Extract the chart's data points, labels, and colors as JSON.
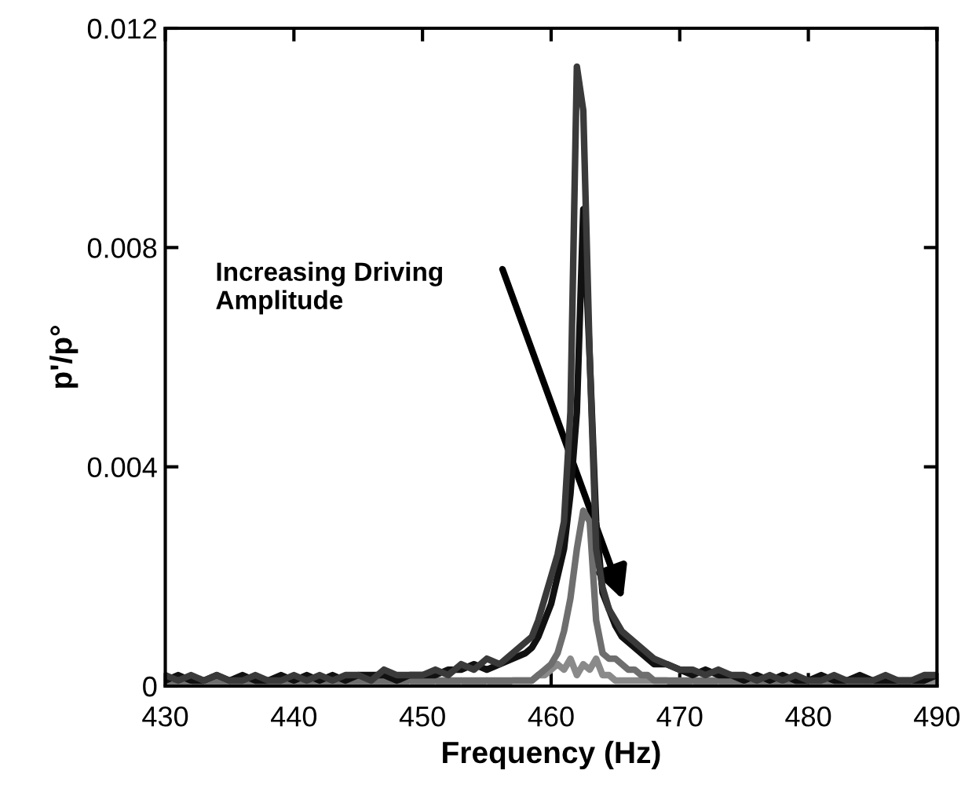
{
  "chart_data": {
    "type": "line",
    "xlabel": "Frequency (Hz)",
    "ylabel": "p'/p°",
    "x": [
      430,
      431,
      432,
      433,
      434,
      435,
      436,
      437,
      438,
      439,
      440,
      441,
      442,
      443,
      444,
      445,
      446,
      447,
      448,
      449,
      450,
      451,
      452,
      453,
      454,
      455,
      456,
      457,
      458,
      458.5,
      459,
      459.5,
      460,
      460.5,
      461,
      461.5,
      462,
      462.5,
      463,
      463.5,
      464,
      464.5,
      465,
      465.5,
      466,
      466.5,
      467,
      467.5,
      468,
      469,
      470,
      471,
      472,
      473,
      474,
      475,
      476,
      477,
      478,
      479,
      480,
      481,
      482,
      483,
      484,
      485,
      486,
      487,
      488,
      489,
      490
    ],
    "series": [
      {
        "color": "#8a8a8a",
        "values": [
          0.0001,
          0,
          0.0001,
          0,
          0.0001,
          0,
          0,
          0.0001,
          0,
          0.0001,
          0,
          0,
          0.0001,
          0,
          0.0001,
          0,
          0,
          0.0001,
          0,
          0.0001,
          0,
          0.0001,
          0,
          0.0001,
          0,
          0.0001,
          0,
          0.0001,
          0.0001,
          0.0001,
          0.0002,
          0.0002,
          0.0003,
          0.0004,
          0.0003,
          0.0005,
          0.0002,
          0.0004,
          0.0003,
          0.0005,
          0.0002,
          0.0002,
          0.0001,
          0.0001,
          0.0001,
          0.0001,
          0.0001,
          0.0001,
          0.0001,
          0.0001,
          0,
          0.0001,
          0,
          0.0001,
          0,
          0.0001,
          0,
          0,
          0.0001,
          0,
          0.0001,
          0,
          0,
          0.0001,
          0,
          0.0001,
          0,
          0,
          0.0001,
          0,
          0.0001
        ]
      },
      {
        "color": "#6e6e6e",
        "values": [
          0.0001,
          0.0001,
          0.0001,
          0.0001,
          0.0001,
          0.0001,
          0.0001,
          0.0001,
          0.0001,
          0.0001,
          0.0001,
          0.0001,
          0.0001,
          0.0001,
          0.0001,
          0.0001,
          0.0001,
          0.0001,
          0.0001,
          0.0001,
          0.0001,
          0.0001,
          0.0001,
          0.0001,
          0.0001,
          0.0001,
          0.0001,
          0.0001,
          0.0001,
          0.0001,
          0.0002,
          0.0003,
          0.0004,
          0.0006,
          0.001,
          0.0016,
          0.0025,
          0.0032,
          0.003,
          0.0012,
          0.0006,
          0.0005,
          0.0005,
          0.0004,
          0.0003,
          0.0003,
          0.0002,
          0.0002,
          0.0001,
          0.0001,
          0.0001,
          0.0001,
          0.0001,
          0.0001,
          0.0001,
          0.0001,
          0.0001,
          0.0001,
          0.0001,
          0.0001,
          0.0001,
          0.0001,
          0.0001,
          0.0001,
          0.0001,
          0.0001,
          0.0001,
          0.0001,
          0.0001,
          0.0001,
          0.0002
        ]
      },
      {
        "color": "#111111",
        "values": [
          0.0001,
          0.0002,
          0.0001,
          0.0001,
          0.0002,
          0.0001,
          0.0002,
          0.0001,
          0.0001,
          0.0002,
          0.0001,
          0.0002,
          0.0001,
          0.0002,
          0.0001,
          0.0002,
          0.0002,
          0.0002,
          0.0001,
          0.0002,
          0.0002,
          0.0002,
          0.0003,
          0.0003,
          0.0004,
          0.0003,
          0.0004,
          0.0005,
          0.0006,
          0.0007,
          0.0009,
          0.0012,
          0.0015,
          0.002,
          0.0025,
          0.0035,
          0.005,
          0.0087,
          0.006,
          0.003,
          0.0017,
          0.0014,
          0.0011,
          0.0009,
          0.0008,
          0.0007,
          0.0006,
          0.0005,
          0.0004,
          0.0004,
          0.0003,
          0.0002,
          0.0003,
          0.0002,
          0.0002,
          0.0001,
          0.0002,
          0.0001,
          0.0002,
          0.0001,
          0.0001,
          0.0002,
          0.0001,
          0.0001,
          0.0002,
          0.0001,
          0.0001,
          0.0001,
          0.0001,
          0.0001,
          0.0002
        ]
      },
      {
        "color": "#3a3a3a",
        "values": [
          0.0002,
          0.0001,
          0.0002,
          0.0001,
          0.0002,
          0.0001,
          0.0001,
          0.0002,
          0.0001,
          0.0001,
          0.0002,
          0.0001,
          0.0002,
          0.0001,
          0.0002,
          0.0002,
          0.0001,
          0.0003,
          0.0002,
          0.0002,
          0.0002,
          0.0003,
          0.0002,
          0.0004,
          0.0003,
          0.0005,
          0.0004,
          0.0006,
          0.0008,
          0.0009,
          0.0012,
          0.0016,
          0.002,
          0.0024,
          0.003,
          0.005,
          0.0113,
          0.0105,
          0.006,
          0.0025,
          0.0018,
          0.0014,
          0.0012,
          0.001,
          0.0009,
          0.0008,
          0.0007,
          0.0006,
          0.0005,
          0.0004,
          0.0003,
          0.0003,
          0.0002,
          0.0003,
          0.0002,
          0.0002,
          0.0001,
          0.0002,
          0.0001,
          0.0002,
          0.0001,
          0.0001,
          0.0002,
          0.0001,
          0.0001,
          0.0001,
          0.0002,
          0.0001,
          0.0001,
          0.0002,
          0.0002
        ]
      }
    ],
    "xlim": [
      430,
      490
    ],
    "xticks": [
      430,
      440,
      450,
      460,
      470,
      480,
      490
    ],
    "ylim": [
      0,
      0.012
    ],
    "yticks": [
      0,
      0.004,
      0.008,
      0.012
    ],
    "annotations": [
      "Increasing Driving\nAmplitude"
    ],
    "grid": false,
    "legend": false,
    "marker": "none",
    "line_style": "solid"
  }
}
